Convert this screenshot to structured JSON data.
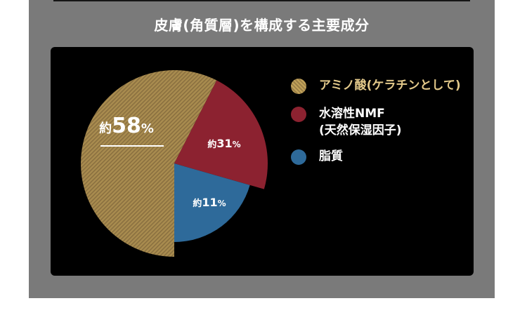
{
  "title": "皮膚(角質層)を構成する主要成分",
  "chart_data": {
    "type": "pie",
    "title": "皮膚(角質層)を構成する主要成分",
    "series": [
      {
        "name": "アミノ酸(ケラチンとして)",
        "value": 58,
        "label_prefix": "約",
        "label_value": "58",
        "label_unit": "%",
        "color": "#a98c4f",
        "legend_color": "#c4a45a",
        "pattern": "diagonal-stripes"
      },
      {
        "name": "水溶性NMF(天然保湿因子)",
        "legend_lines": [
          "水溶性NMF",
          "(天然保湿因子)"
        ],
        "value": 31,
        "label_prefix": "約",
        "label_value": "31",
        "label_unit": "%",
        "color": "#8c2230"
      },
      {
        "name": "脂質",
        "value": 11,
        "label_prefix": "約",
        "label_value": "11",
        "label_unit": "%",
        "color": "#2e6a9a"
      }
    ],
    "legend_position": "right"
  }
}
